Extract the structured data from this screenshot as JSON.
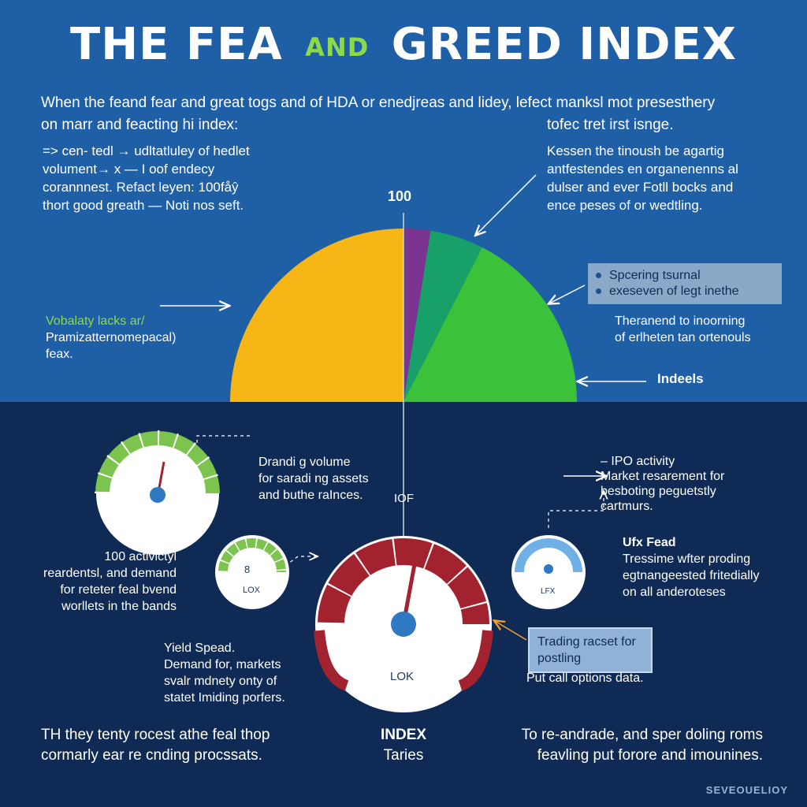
{
  "title": {
    "part1": "THE FEA",
    "part2": "AND",
    "part3": "GREED INDEX"
  },
  "intro": {
    "line1": "When the feand fear and great togs and of HDA or enedjreas and lidey, lefect manksl mot presesthery",
    "line2": "on marr and feacting hi index:",
    "line3": "tofec tret irst isnge."
  },
  "left_note": [
    "=> cen- tedl → udltatluley of hedlet",
    "volument→ x — I oof endecy",
    "corannnest. Refact leyen: 100fåŷ",
    "thort good greath — Noti nos seft."
  ],
  "right_note": [
    "Kessen the tinoush be agartig",
    "antfestendes en organenenns al",
    "dulser and ever Fotll bocks and",
    "ence peses of or wedtling."
  ],
  "chart_label_100": "100",
  "legend_box": [
    "Spcering tsurnal",
    "exeseven of legt inethe"
  ],
  "right_mid": [
    "Theranend to inoorning",
    "of erlheten tan ortenouls"
  ],
  "indeels": "Indeels",
  "left_mid": [
    "Vobalaty lacks ar/",
    "Pramizatternomepacal)",
    "feax."
  ],
  "chart_data": {
    "type": "pie",
    "title": "",
    "slices": [
      {
        "label": "",
        "value": 50,
        "color": "#f6b716"
      },
      {
        "label": "",
        "value": 5,
        "color": "#7b3591"
      },
      {
        "label": "",
        "value": 10,
        "color": "#17a067"
      },
      {
        "label": "",
        "value": 35,
        "color": "#3cc13a"
      }
    ]
  },
  "trading_volume": [
    "Drandi g volume",
    "for saradi ng assets",
    "and buthe raInces."
  ],
  "iof": "IOF",
  "ipo": [
    "–   IPO activity",
    "Market resarement for",
    "besboting peguetstly",
    "cartmurs."
  ],
  "left_activity": [
    "100 actlvictyl",
    "reardentsl, and demand",
    "for reteter feal bvend",
    "worllets in the bands"
  ],
  "ufx": {
    "heading": "Ufx Fead",
    "lines": [
      "Tressime wfter proding",
      "egtnangeested fritedially",
      "on all anderoteses"
    ]
  },
  "yield": [
    "Yield Spead.",
    "Demand for, markets",
    "svalr mdnety onty of",
    "statet Imiding porfers."
  ],
  "trading_box": [
    "Trading racset for",
    "postling"
  ],
  "put_call": "Put call options data.",
  "gauges": {
    "g1": {
      "label": ""
    },
    "g2": {
      "value": "8",
      "label": "LOX"
    },
    "g3": {
      "label": "LOK"
    },
    "g4": {
      "label": "LFX"
    }
  },
  "bottom_left": [
    "TH they tenty rocest athe feal thop",
    "cormarly ear re cnding procssats."
  ],
  "bottom_center": {
    "heading": "INDEX",
    "sub": "Taries"
  },
  "bottom_right": [
    "To re-andrade, and sper doling roms",
    "feavling put forore and imounines."
  ],
  "signature": "SEVEOUELIOY",
  "colors": {
    "top_bg": "#1f5fa6",
    "bottom_bg": "#0f2b55",
    "accent_green": "#8cd94a",
    "gauge_red": "#a3222f",
    "gauge_blue": "#2f79c2"
  }
}
